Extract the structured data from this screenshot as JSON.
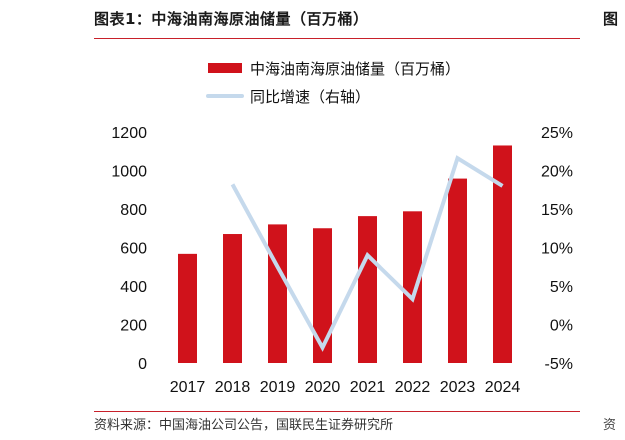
{
  "header": {
    "title": "图表1：中海油南海原油储量（百万桶）",
    "edge_glyph": "图",
    "edge_glyph_bottom": "资"
  },
  "footer": {
    "source": "资料来源：中国海油公司公告，国联民生证券研究所"
  },
  "colors": {
    "bar": "#d0121b",
    "line": "#c5d9ec",
    "rule": "#c8202a"
  },
  "chart_data": {
    "type": "bar",
    "title": "中海油南海原油储量（百万桶）",
    "categories": [
      "2017",
      "2018",
      "2019",
      "2020",
      "2021",
      "2022",
      "2023",
      "2024"
    ],
    "series": [
      {
        "name": "中海油南海原油储量（百万桶）",
        "type": "bar",
        "axis": "left",
        "values": [
          567,
          670,
          720,
          700,
          763,
          788,
          958,
          1130
        ]
      },
      {
        "name": "同比增速（右轴）",
        "type": "line",
        "axis": "right",
        "values": [
          null,
          18.2,
          7.5,
          -3.0,
          9.0,
          3.3,
          21.6,
          18.0
        ]
      }
    ],
    "left_axis": {
      "ylim": [
        0,
        1200
      ],
      "ticks": [
        "0",
        "200",
        "400",
        "600",
        "800",
        "1000",
        "1200"
      ],
      "tick_values": [
        0,
        200,
        400,
        600,
        800,
        1000,
        1200
      ]
    },
    "right_axis": {
      "ylim": [
        -5,
        25
      ],
      "ticks": [
        "-5%",
        "0%",
        "5%",
        "10%",
        "15%",
        "20%",
        "25%"
      ],
      "tick_values": [
        -5,
        0,
        5,
        10,
        15,
        20,
        25
      ]
    },
    "legend": [
      "中海油南海原油储量（百万桶）",
      "同比增速（右轴）"
    ],
    "legend_position": "top",
    "grid": false,
    "xlabel": "",
    "ylabel": ""
  }
}
